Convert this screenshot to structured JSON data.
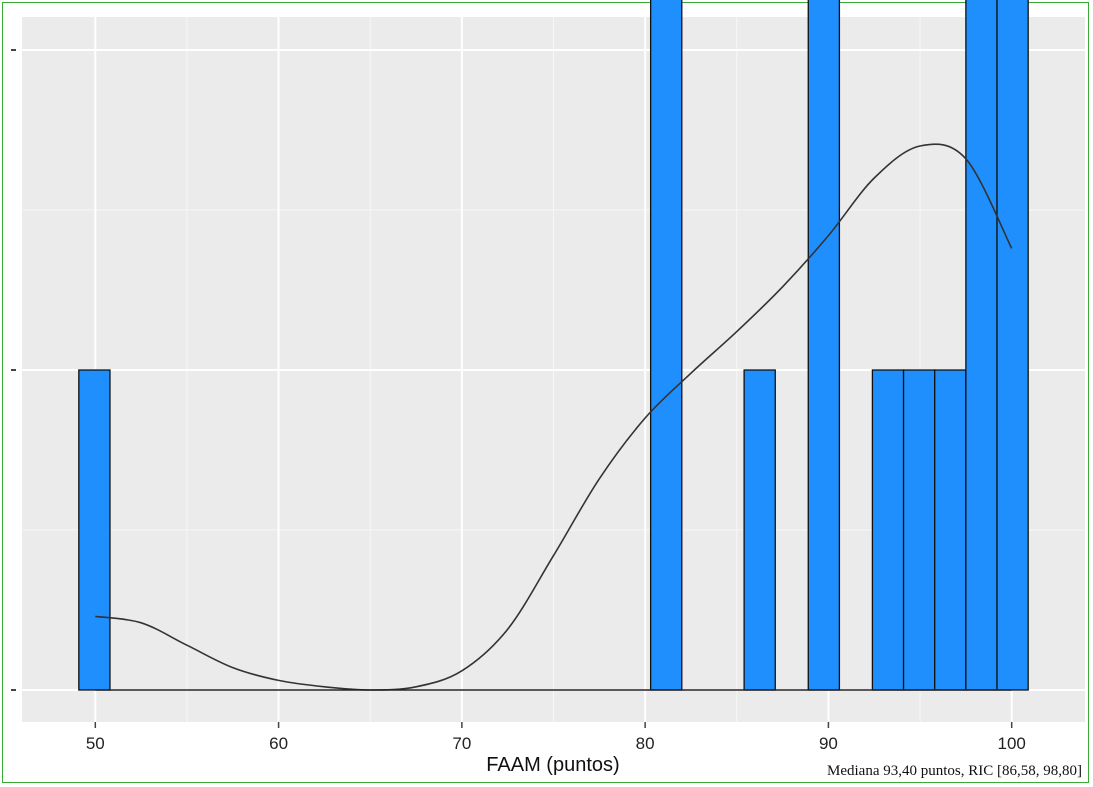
{
  "chart_data": {
    "type": "bar",
    "subtype": "histogram_with_density",
    "xlabel": "FAAM (puntos)",
    "ylabel": "",
    "xlim": [
      46,
      104
    ],
    "ylim": [
      0,
      3.5
    ],
    "x_ticks": [
      "50",
      "60",
      "70",
      "80",
      "90",
      "100"
    ],
    "grid": true,
    "bars": [
      {
        "x0": 49.1,
        "x1": 50.8,
        "value": 1.0
      },
      {
        "x0": 80.3,
        "x1": 82.0,
        "value": 3.0
      },
      {
        "x0": 85.4,
        "x1": 87.1,
        "value": 1.0
      },
      {
        "x0": 88.9,
        "x1": 90.6,
        "value": 3.0
      },
      {
        "x0": 92.4,
        "x1": 94.1,
        "value": 1.0
      },
      {
        "x0": 94.1,
        "x1": 95.8,
        "value": 1.0
      },
      {
        "x0": 95.8,
        "x1": 97.5,
        "value": 1.0
      },
      {
        "x0": 97.5,
        "x1": 99.2,
        "value": 3.0
      },
      {
        "x0": 99.2,
        "x1": 100.9,
        "value": 3.0
      }
    ],
    "density_curve": {
      "x": [
        50,
        52.5,
        55,
        57.5,
        60,
        62.5,
        65,
        67.5,
        70,
        72.5,
        75,
        77.5,
        80,
        82.5,
        85,
        87.5,
        90,
        92.5,
        95,
        97.5,
        100
      ],
      "y": [
        0.23,
        0.21,
        0.14,
        0.07,
        0.03,
        0.01,
        0.0,
        0.01,
        0.06,
        0.19,
        0.42,
        0.66,
        0.85,
        0.99,
        1.12,
        1.26,
        1.42,
        1.6,
        1.7,
        1.66,
        1.38
      ]
    },
    "bar_color": "#1f8ffd",
    "curve_color": "#333333",
    "panel_color": "#ebebeb"
  },
  "note": "Mediana 93,40 puntos, RIC [86,58, 98,80]"
}
